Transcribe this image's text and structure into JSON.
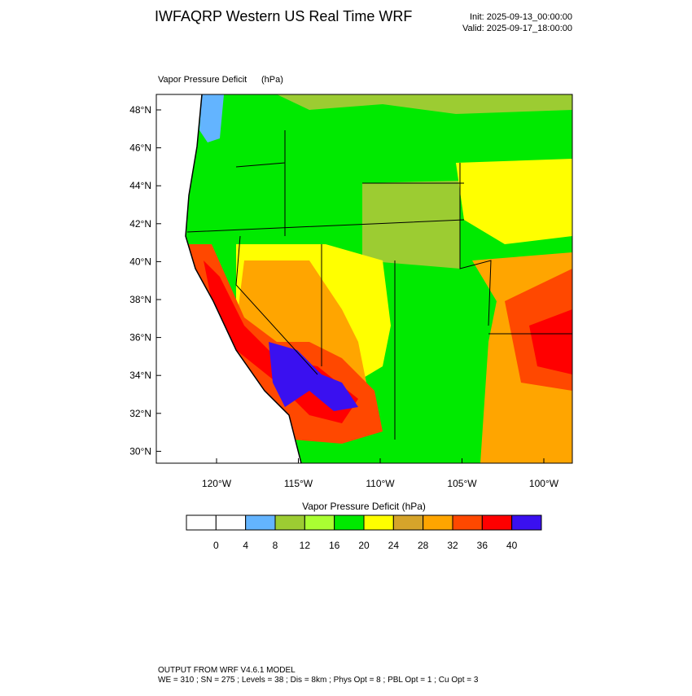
{
  "header": {
    "title": "IWFAQRP Western US Real Time WRF",
    "init": "Init: 2025-09-13_00:00:00",
    "valid": "Valid: 2025-09-17_18:00:00"
  },
  "map": {
    "label": "Vapor Pressure Deficit",
    "units": "(hPa)",
    "lat_ticks": [
      "48°N",
      "46°N",
      "44°N",
      "42°N",
      "40°N",
      "38°N",
      "36°N",
      "34°N",
      "32°N",
      "30°N"
    ],
    "lon_ticks": [
      "120°W",
      "115°W",
      "110°W",
      "105°W",
      "100°W"
    ]
  },
  "colorbar": {
    "title": "Vapor Pressure Deficit  (hPa)",
    "levels": [
      0,
      4,
      8,
      12,
      16,
      20,
      24,
      28,
      32,
      36,
      40
    ],
    "colors": [
      "#ffffff",
      "#ffffff",
      "#63b4ff",
      "#9ccc32",
      "#aaff32",
      "#00ea00",
      "#ffff00",
      "#d6a42a",
      "#ffa500",
      "#ff4800",
      "#ff0000",
      "#3a10f0"
    ]
  },
  "footer": {
    "line1": "OUTPUT FROM WRF V4.6.1 MODEL",
    "line2": "WE = 310 ; SN = 275 ; Levels = 38 ; Dis = 8km ; Phys Opt = 8 ; PBL Opt = 1 ; Cu Opt = 3"
  }
}
